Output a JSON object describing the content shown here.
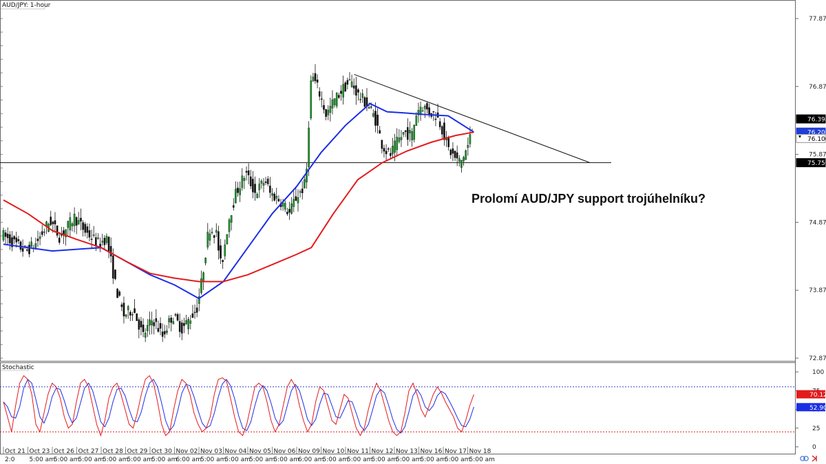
{
  "chart_data": {
    "type": "candlestick",
    "title": "AUD/JPY: 1-hour",
    "annotation": "Prolomí AUD/JPY support trojúhelníku?",
    "y_ticks": [
      "77.872",
      "76.872",
      "75.872",
      "74.872",
      "73.872",
      "72.872"
    ],
    "ylim": [
      72.872,
      78.1
    ],
    "price_tags": [
      {
        "label": "76.394",
        "value": 76.394,
        "color": "#000000"
      },
      {
        "label": "76.200",
        "value": 76.2,
        "color": "#1f3fd6"
      },
      {
        "label": "76.106",
        "value": 76.106,
        "color": "#ffffff",
        "text_color": "#000000"
      },
      {
        "label": "75.750",
        "value": 75.75,
        "color": "#000000"
      }
    ],
    "x_labels": [
      {
        "top": "Oct 21",
        "bottom": "2:0"
      },
      {
        "top": "Oct 23",
        "bottom": "5:00 am"
      },
      {
        "top": "Oct 26",
        "bottom": "5:00 am"
      },
      {
        "top": "Oct 27",
        "bottom": "5:00 am"
      },
      {
        "top": "Oct 28",
        "bottom": "5:00 am"
      },
      {
        "top": "Oct 29",
        "bottom": "5:00 am"
      },
      {
        "top": "Oct 30",
        "bottom": "5:00 am"
      },
      {
        "top": "Nov 02",
        "bottom": "6:00 am"
      },
      {
        "top": "Nov 03",
        "bottom": "5:00 am"
      },
      {
        "top": "Nov 04",
        "bottom": "5:00 am"
      },
      {
        "top": "Nov 05",
        "bottom": "5:00 am"
      },
      {
        "top": "Nov 06",
        "bottom": "5:00 am"
      },
      {
        "top": "Nov 09",
        "bottom": "6:00 am"
      },
      {
        "top": "Nov 10",
        "bottom": "5:00 am"
      },
      {
        "top": "Nov 11",
        "bottom": "5:00 am"
      },
      {
        "top": "Nov 12",
        "bottom": "5:00 am"
      },
      {
        "top": "Nov 13",
        "bottom": "5:00 am"
      },
      {
        "top": "Nov 16",
        "bottom": "5:00 am"
      },
      {
        "top": "Nov 17",
        "bottom": "5:00 am"
      },
      {
        "top": "Nov 18",
        "bottom": "5:00 am"
      }
    ],
    "price_path": [
      [
        0,
        74.7
      ],
      [
        1,
        74.45
      ],
      [
        1.4,
        74.55
      ],
      [
        2,
        74.9
      ],
      [
        2.4,
        74.65
      ],
      [
        3,
        74.95
      ],
      [
        3.4,
        74.75
      ],
      [
        4,
        74.55
      ],
      [
        4.3,
        74.65
      ],
      [
        4.7,
        73.9
      ],
      [
        5,
        73.5
      ],
      [
        5.4,
        73.6
      ],
      [
        5.8,
        73.2
      ],
      [
        6.2,
        73.45
      ],
      [
        6.6,
        73.2
      ],
      [
        7,
        73.5
      ],
      [
        7.4,
        73.3
      ],
      [
        7.8,
        73.5
      ],
      [
        8,
        73.6
      ],
      [
        8.2,
        74.0
      ],
      [
        8.5,
        74.8
      ],
      [
        8.8,
        74.7
      ],
      [
        9,
        74.2
      ],
      [
        9.3,
        74.9
      ],
      [
        9.6,
        75.3
      ],
      [
        10,
        75.6
      ],
      [
        10.4,
        75.3
      ],
      [
        10.8,
        75.5
      ],
      [
        11,
        75.3
      ],
      [
        11.4,
        75.2
      ],
      [
        11.8,
        75.0
      ],
      [
        12,
        75.2
      ],
      [
        12.4,
        75.4
      ],
      [
        12.55,
        75.8
      ],
      [
        12.6,
        76.6
      ],
      [
        12.7,
        77.05
      ],
      [
        13,
        76.8
      ],
      [
        13.3,
        76.45
      ],
      [
        13.6,
        76.65
      ],
      [
        14,
        76.85
      ],
      [
        14.3,
        76.95
      ],
      [
        14.6,
        76.75
      ],
      [
        15,
        76.6
      ],
      [
        15.3,
        76.4
      ],
      [
        15.6,
        76.0
      ],
      [
        15.9,
        75.85
      ],
      [
        16.2,
        76.05
      ],
      [
        16.5,
        76.2
      ],
      [
        16.8,
        76.15
      ],
      [
        17,
        76.5
      ],
      [
        17.2,
        76.6
      ],
      [
        17.5,
        76.5
      ],
      [
        17.8,
        76.45
      ],
      [
        18.0,
        76.3
      ],
      [
        18.3,
        75.95
      ],
      [
        18.6,
        75.8
      ],
      [
        18.8,
        75.75
      ],
      [
        19.1,
        76.0
      ],
      [
        19.25,
        76.22
      ]
    ],
    "series": [
      {
        "name": "",
        "color": "#1b2ee6",
        "points": [
          [
            0,
            74.55
          ],
          [
            2,
            74.45
          ],
          [
            4,
            74.5
          ],
          [
            5,
            74.3
          ],
          [
            6,
            74.1
          ],
          [
            7,
            73.95
          ],
          [
            8,
            73.75
          ],
          [
            9,
            74.0
          ],
          [
            10,
            74.5
          ],
          [
            11,
            75.0
          ],
          [
            12,
            75.4
          ],
          [
            13,
            75.9
          ],
          [
            14,
            76.3
          ],
          [
            15,
            76.62
          ],
          [
            15.7,
            76.5
          ],
          [
            16.5,
            76.48
          ],
          [
            17.2,
            76.46
          ],
          [
            18.2,
            76.44
          ],
          [
            19.25,
            76.2
          ]
        ]
      },
      {
        "name": "",
        "color": "#e31a1c",
        "points": [
          [
            0,
            75.2
          ],
          [
            1,
            75.0
          ],
          [
            2,
            74.75
          ],
          [
            3,
            74.62
          ],
          [
            4,
            74.5
          ],
          [
            5,
            74.3
          ],
          [
            6,
            74.12
          ],
          [
            7,
            74.05
          ],
          [
            8,
            74.0
          ],
          [
            9,
            74.0
          ],
          [
            10,
            74.1
          ],
          [
            11,
            74.25
          ],
          [
            12,
            74.4
          ],
          [
            12.6,
            74.5
          ],
          [
            13.5,
            75.0
          ],
          [
            14.5,
            75.5
          ],
          [
            15.5,
            75.75
          ],
          [
            16.5,
            75.92
          ],
          [
            17.5,
            76.05
          ],
          [
            18.5,
            76.15
          ],
          [
            19.25,
            76.2
          ]
        ]
      }
    ],
    "trendline": {
      "x1": 14.35,
      "y1": 77.05,
      "x2": 24.0,
      "y2": 75.75
    },
    "support_line": 75.75,
    "stochastic": {
      "title": "Stochastic",
      "levels": [
        80,
        20
      ],
      "ticks": [
        "100",
        "75",
        "50",
        "25",
        "0"
      ],
      "tags": [
        {
          "label": "70.12",
          "value": 70.12,
          "color": "#e31a1c"
        },
        {
          "label": "52.90",
          "value": 52.9,
          "color": "#1b2ee6"
        }
      ],
      "k_color": "#e31a1c",
      "d_color": "#1b2ee6",
      "k_values": [
        60,
        40,
        20,
        55,
        85,
        95,
        90,
        70,
        30,
        20,
        45,
        70,
        85,
        80,
        65,
        40,
        25,
        30,
        60,
        85,
        90,
        80,
        55,
        30,
        15,
        35,
        65,
        80,
        85,
        70,
        50,
        30,
        25,
        45,
        70,
        90,
        95,
        85,
        60,
        30,
        15,
        20,
        50,
        75,
        90,
        85,
        70,
        45,
        30,
        20,
        25,
        40,
        70,
        90,
        92,
        88,
        65,
        40,
        20,
        15,
        30,
        55,
        80,
        85,
        80,
        60,
        35,
        20,
        30,
        55,
        80,
        90,
        80,
        55,
        35,
        20,
        30,
        60,
        80,
        75,
        55,
        35,
        30,
        50,
        70,
        65,
        45,
        25,
        15,
        25,
        50,
        70,
        85,
        75,
        55,
        35,
        20,
        15,
        20,
        45,
        75,
        85,
        70,
        50,
        40,
        55,
        70,
        80,
        72,
        60,
        50,
        40,
        25,
        20,
        35,
        55,
        70
      ]
    }
  }
}
